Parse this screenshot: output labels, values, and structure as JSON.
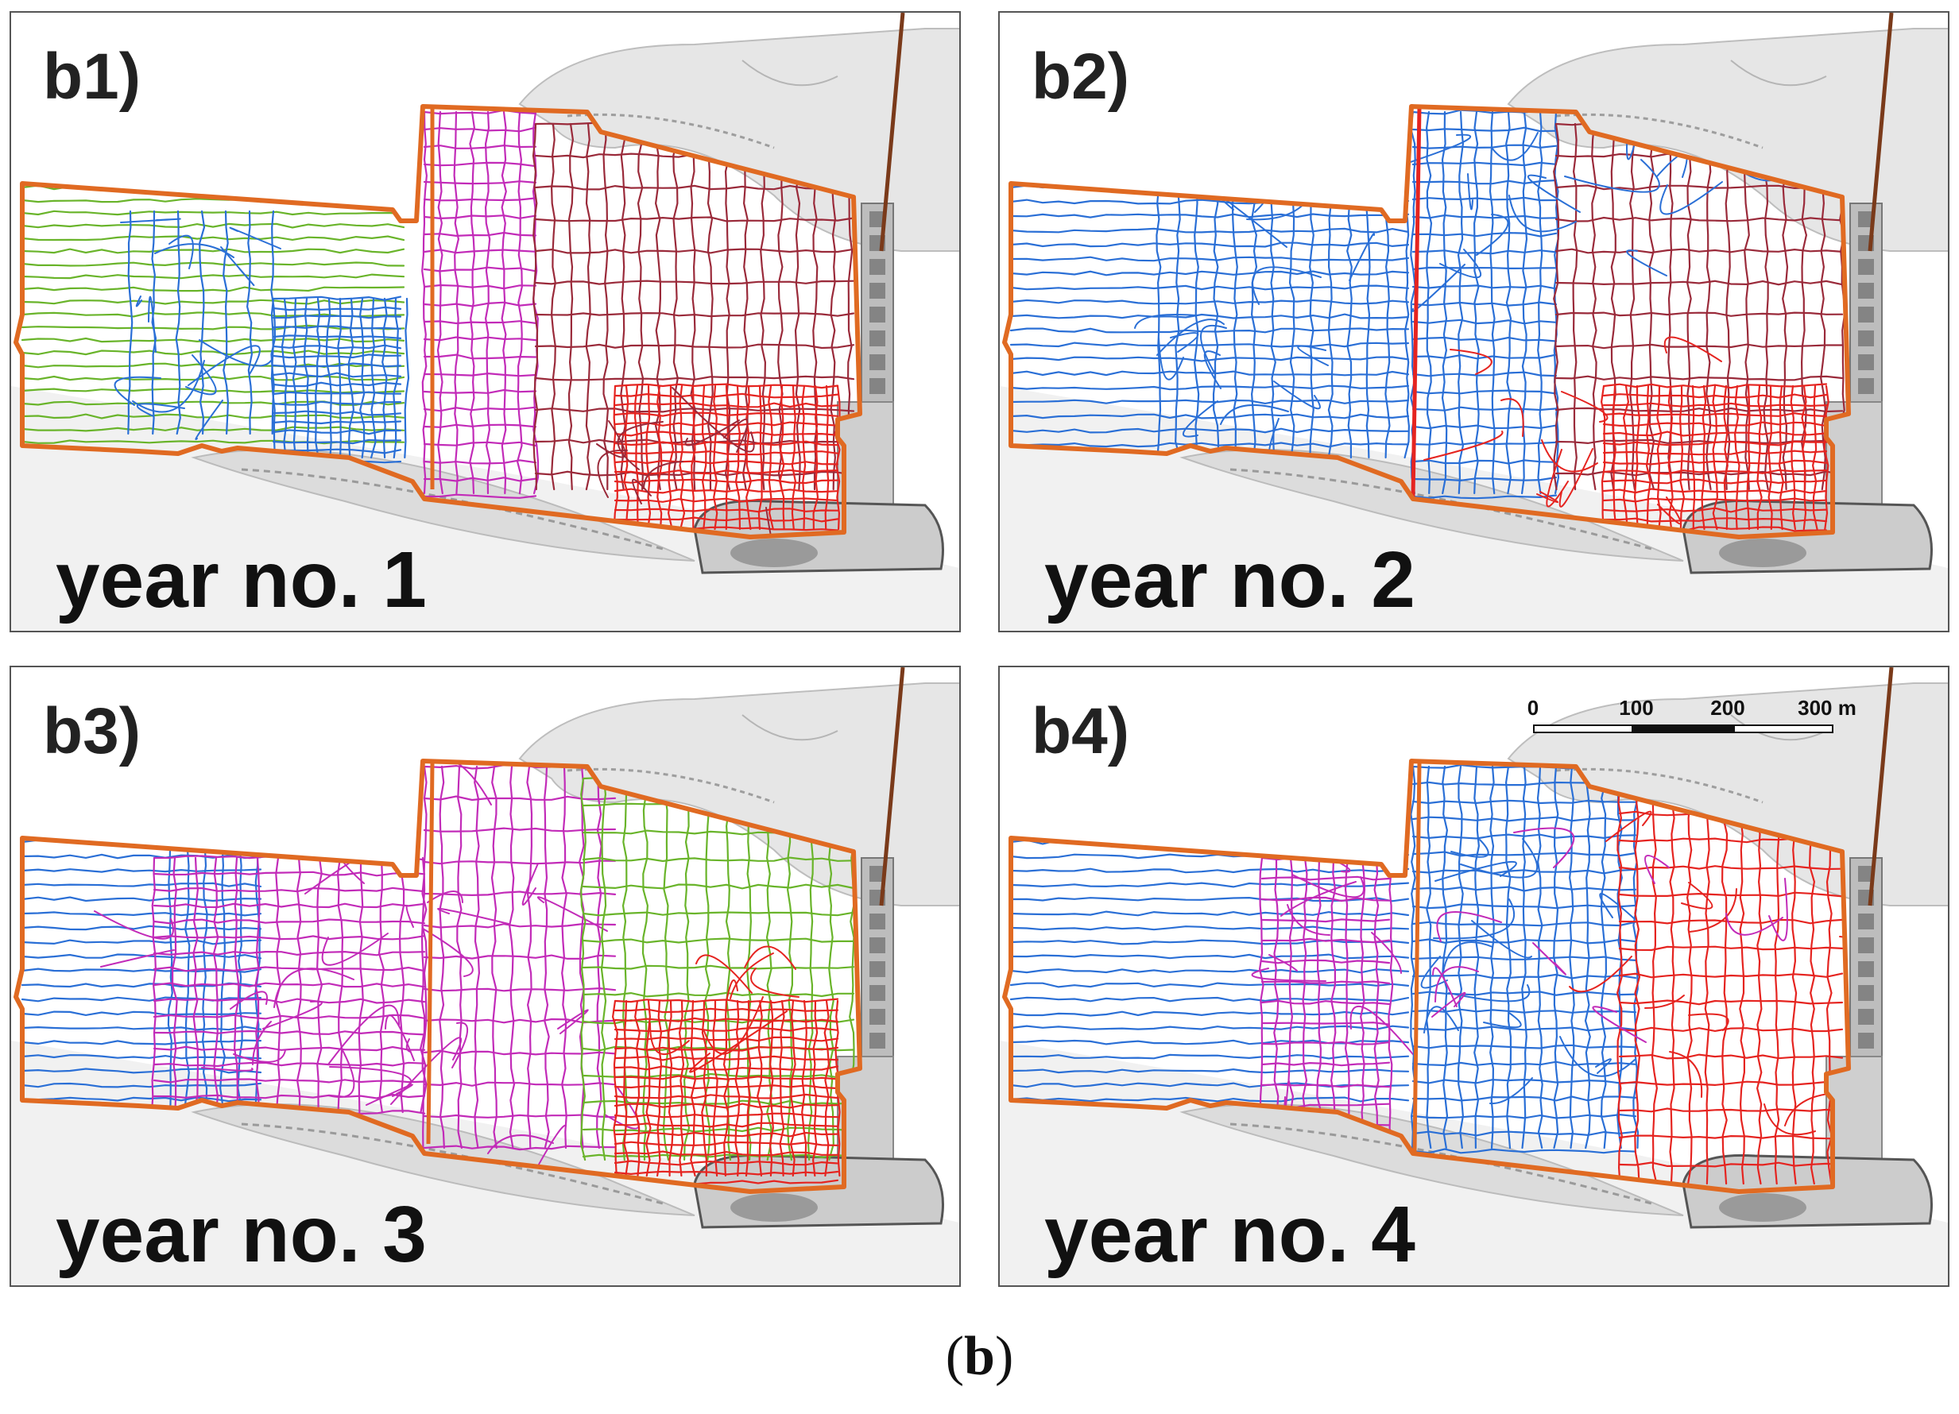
{
  "figure": {
    "caption_open": "(",
    "caption_letter": "b",
    "caption_close": ")"
  },
  "panels": [
    {
      "id": "b1",
      "label": "b1)",
      "year": "year no. 1",
      "colors": [
        "#69b42a",
        "#2a6fd6",
        "#b0257a",
        "#9a2a3a",
        "#e52420"
      ]
    },
    {
      "id": "b2",
      "label": "b2)",
      "year": "year no. 2",
      "colors": [
        "#2a6fd6",
        "#9a2a3a",
        "#e52420"
      ]
    },
    {
      "id": "b3",
      "label": "b3)",
      "year": "year no. 3",
      "colors": [
        "#2a6fd6",
        "#d233c4",
        "#69b42a",
        "#e52420"
      ]
    },
    {
      "id": "b4",
      "label": "b4)",
      "year": "year no. 4",
      "colors": [
        "#2a6fd6",
        "#b52bc0",
        "#e52420"
      ]
    }
  ],
  "scale_bar": {
    "ticks": [
      "0",
      "100",
      "200",
      "300 m"
    ]
  },
  "legend_colors": {
    "boundary": "#e06a22",
    "green": "#69b42a",
    "blue": "#2a6fd6",
    "magenta": "#c22bb8",
    "maroon": "#9a2a3a",
    "red": "#e52420",
    "road": "#7a3a1a"
  }
}
